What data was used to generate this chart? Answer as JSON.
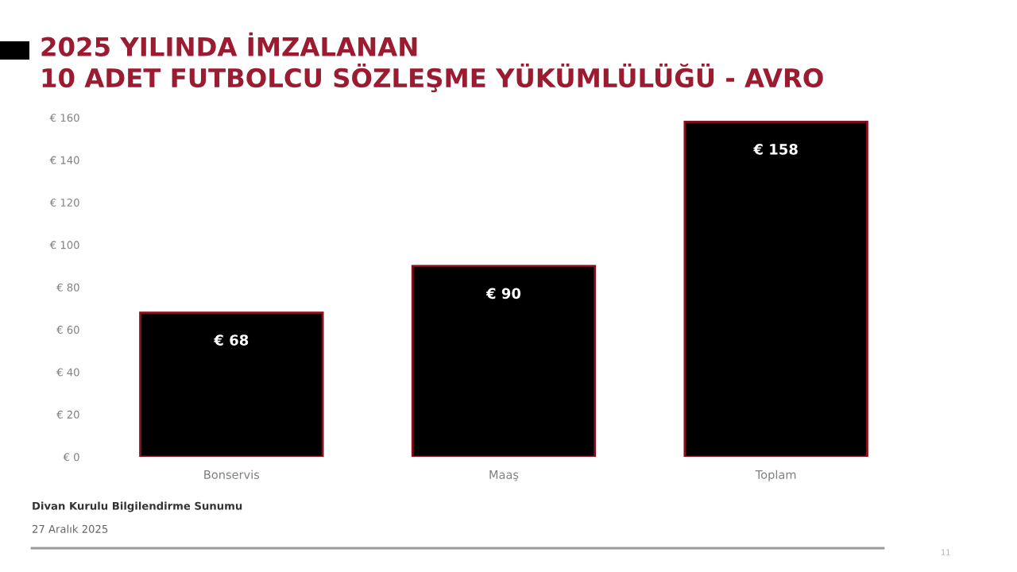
{
  "chart_data": {
    "type": "bar",
    "title": "2025 YILINDA İMZALANAN\n10 ADET FUTBOLCU SÖZLEŞME YÜKÜMLÜLÜĞÜ - AVRO",
    "categories": [
      "Bonservis",
      "Maaş",
      "Toplam"
    ],
    "values": [
      68,
      90,
      158
    ],
    "color": "#000000",
    "value_labels": [
      "€ 68",
      "€ 90",
      "€ 158"
    ],
    "ylim": [
      0,
      160
    ],
    "yticks": [
      {
        "value": 0,
        "label": "€ 0"
      },
      {
        "value": 20,
        "label": "€ 20"
      },
      {
        "value": 40,
        "label": "€ 40"
      },
      {
        "value": 60,
        "label": "€ 60"
      },
      {
        "value": 80,
        "label": "€ 80"
      },
      {
        "value": 100,
        "label": "€ 100"
      },
      {
        "value": 120,
        "label": "€ 120"
      },
      {
        "value": 140,
        "label": "€ 140"
      },
      {
        "value": 160,
        "label": "€ 160"
      }
    ],
    "annotations": [
      "Divan Kurulu Bilgilendirme Sunumu",
      "27 Aralık 2025",
      "11"
    ]
  }
}
